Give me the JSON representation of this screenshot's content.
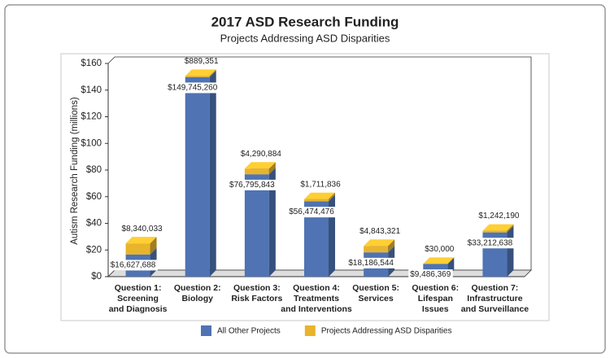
{
  "chart_data": {
    "type": "bar",
    "stacked": true,
    "title": "2017 ASD Research Funding",
    "subtitle": "Projects Addressing ASD Disparities",
    "y_label": "Autism Research Funding (millions)",
    "categories": [
      "Question 1:\nScreening\nand Diagnosis",
      "Question 2:\nBiology",
      "Question 3:\nRisk Factors",
      "Question 4:\nTreatments\nand Interventions",
      "Question 5:\nServices",
      "Question 6:\nLifespan\nIssues",
      "Question 7:\nInfrastructure\nand Surveillance"
    ],
    "series": [
      {
        "name": "All Other Projects",
        "color": "#4f73b3",
        "values": [
          16.627688,
          149.74526,
          76.795843,
          56.474476,
          18.186544,
          9.486369,
          33.212638
        ],
        "value_labels": [
          "$16,627,688",
          "$149,745,260",
          "$76,795,843",
          "$56,474,476",
          "$18,186,544",
          "$9,486,369",
          "$33,212,638"
        ]
      },
      {
        "name": "Projects Addressing ASD Disparities",
        "color": "#e9b42c",
        "values": [
          8.340033,
          0.889351,
          4.290884,
          1.711836,
          4.843321,
          0.03,
          1.24219
        ],
        "value_labels": [
          "$8,340,033",
          "$889,351",
          "$4,290,884",
          "$1,711,836",
          "$4,843,321",
          "$30,000",
          "$1,242,190"
        ]
      }
    ],
    "ylim": [
      0,
      160
    ],
    "yticks": [
      {
        "value": 0,
        "label": "$0"
      },
      {
        "value": 20,
        "label": "$20"
      },
      {
        "value": 40,
        "label": "$40"
      },
      {
        "value": 60,
        "label": "$60"
      },
      {
        "value": 80,
        "label": "$80"
      },
      {
        "value": 100,
        "label": "$100"
      },
      {
        "value": 120,
        "label": "$120"
      },
      {
        "value": 140,
        "label": "$140"
      },
      {
        "value": 160,
        "label": "$160"
      }
    ],
    "legend": "bottom"
  }
}
